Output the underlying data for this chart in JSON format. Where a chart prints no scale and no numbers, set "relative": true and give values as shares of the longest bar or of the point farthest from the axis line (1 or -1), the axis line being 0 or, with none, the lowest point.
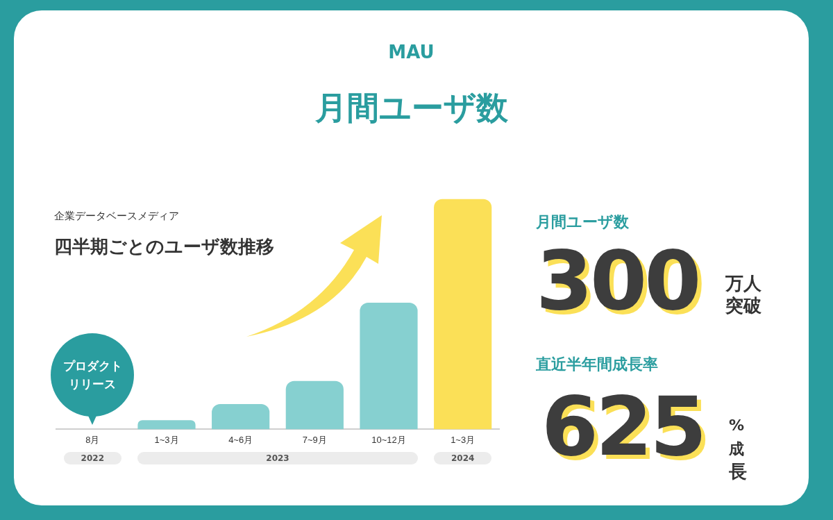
{
  "chart_data": {
    "type": "bar",
    "title": "月間ユーザ数",
    "subtitle": "MAU",
    "categories": [
      "8月",
      "1~3月",
      "4~6月",
      "7~9月",
      "10~12月",
      "1~3月"
    ],
    "values": [
      null,
      0.04,
      0.11,
      0.21,
      0.55,
      1
    ],
    "colors": [
      "#86d0d0",
      "#86d0d0",
      "#86d0d0",
      "#86d0d0",
      "#86d0d0",
      "#fbe057"
    ],
    "relative": true,
    "annotations": [
      "企業データベースメディア",
      "四半期ごとのユーザ数推移",
      "プロダクトリリース",
      "2022",
      "2023",
      "2024",
      "月間ユーザ数",
      "300",
      "万人突破",
      "直近半年間成長率",
      "625",
      "%成長"
    ]
  }
}
